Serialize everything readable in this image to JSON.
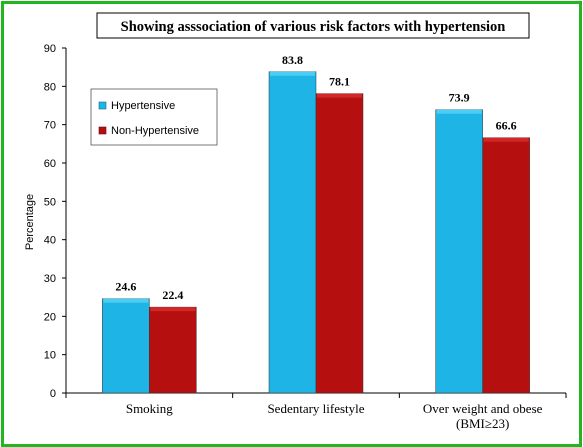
{
  "chart_data": {
    "type": "bar",
    "title": "Showing asssociation  of various risk factors with hypertension",
    "ylabel": "Percentage",
    "xlabel": "",
    "ylim": [
      0,
      90
    ],
    "yticks": [
      "0",
      "10",
      "20",
      "30",
      "40",
      "50",
      "60",
      "70",
      "80",
      "90"
    ],
    "categories": [
      [
        "Smoking"
      ],
      [
        "Sedentary  lifestyle"
      ],
      [
        "Over weight and obese",
        "(BMI≥23)"
      ]
    ],
    "series": [
      {
        "name": "Hypertensive",
        "values": [
          24.6,
          83.8,
          73.9
        ],
        "labels": [
          "24.6",
          "83.8",
          "73.9"
        ],
        "color": "#1eb4e6"
      },
      {
        "name": "Non-Hypertensive",
        "values": [
          22.4,
          78.1,
          66.6
        ],
        "labels": [
          "22.4",
          "78.1",
          "66.6"
        ],
        "color": "#b50f0f"
      }
    ],
    "grid": false,
    "legend_position": "top-left"
  },
  "colors": {
    "border": "#22b622",
    "hypertensive_top": "#4fd0f5",
    "non_hypertensive_top": "#d62a2a"
  }
}
